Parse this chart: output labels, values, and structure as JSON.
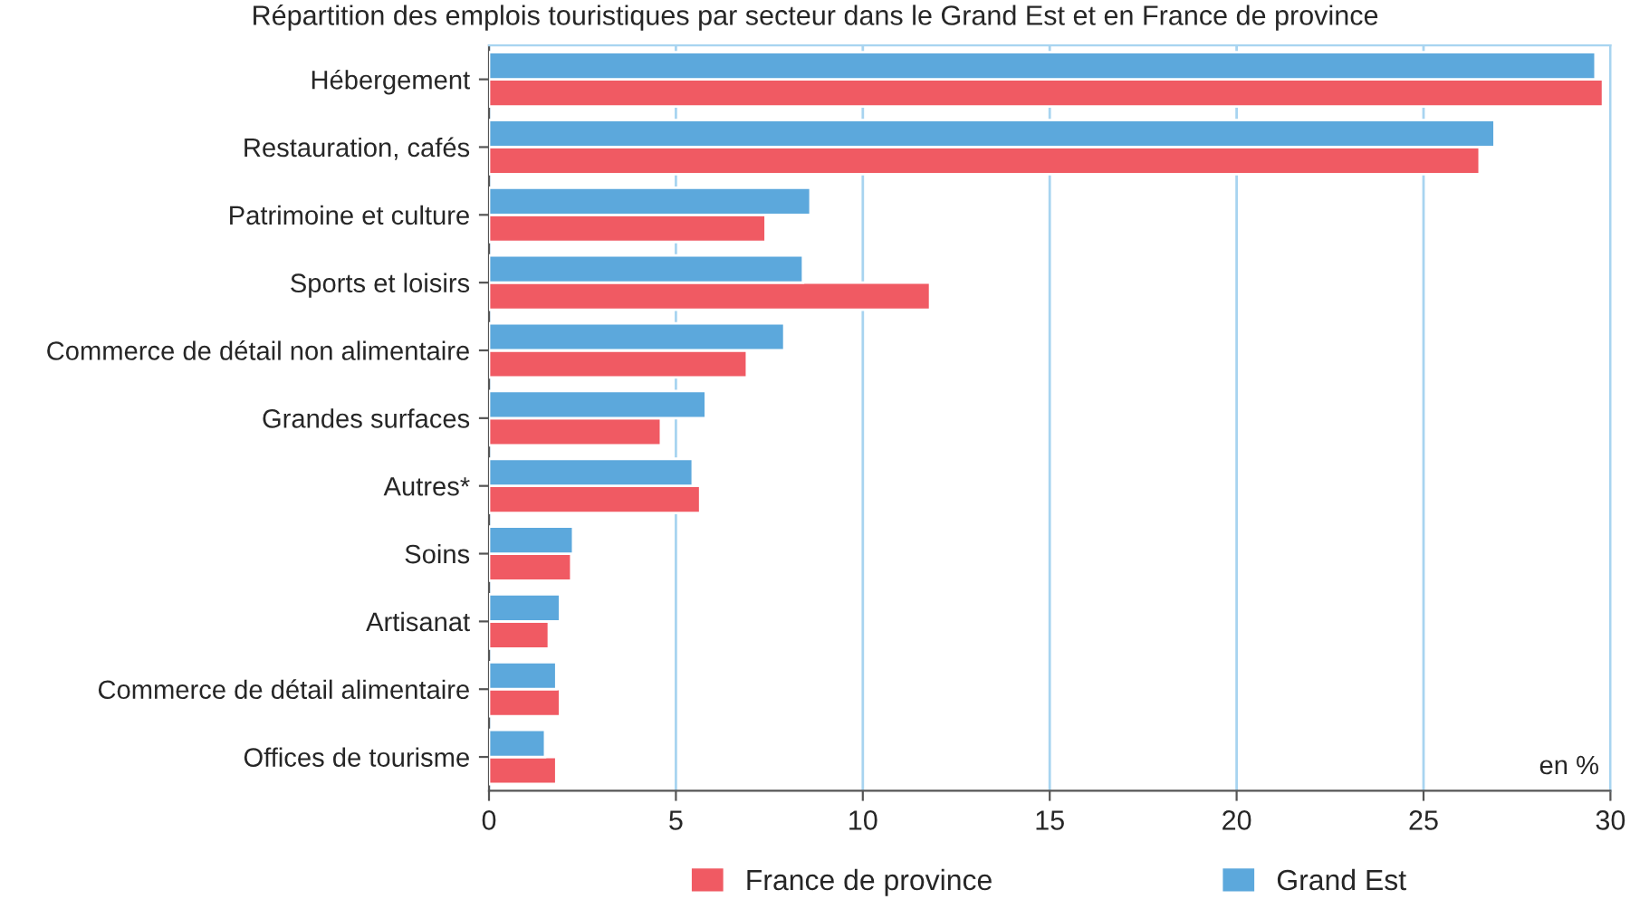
{
  "chart_data": {
    "type": "bar",
    "orientation": "horizontal",
    "title": "Répartition des emplois touristiques par secteur dans le Grand Est et en France de province",
    "categories": [
      "Hébergement",
      "Restauration, cafés",
      "Patrimoine et culture",
      "Sports et loisirs",
      "Commerce de détail non alimentaire",
      "Grandes surfaces",
      "Autres*",
      "Soins",
      "Artisanat",
      "Commerce de détail alimentaire",
      "Offices de tourisme"
    ],
    "series": [
      {
        "name": "France de province",
        "color": "#f05a63",
        "values": [
          29.8,
          26.5,
          7.4,
          11.8,
          6.9,
          4.6,
          5.65,
          2.2,
          1.6,
          1.9,
          1.8
        ]
      },
      {
        "name": "Grand Est",
        "color": "#5ca8dc",
        "values": [
          29.6,
          26.9,
          8.6,
          8.4,
          7.9,
          5.8,
          5.45,
          2.25,
          1.9,
          1.8,
          1.5
        ]
      }
    ],
    "xlim": [
      0,
      30
    ],
    "xticks": [
      0,
      5,
      10,
      15,
      20,
      25,
      30
    ],
    "annotations": [
      "en %"
    ],
    "grid": "x",
    "legend": "bottom"
  }
}
